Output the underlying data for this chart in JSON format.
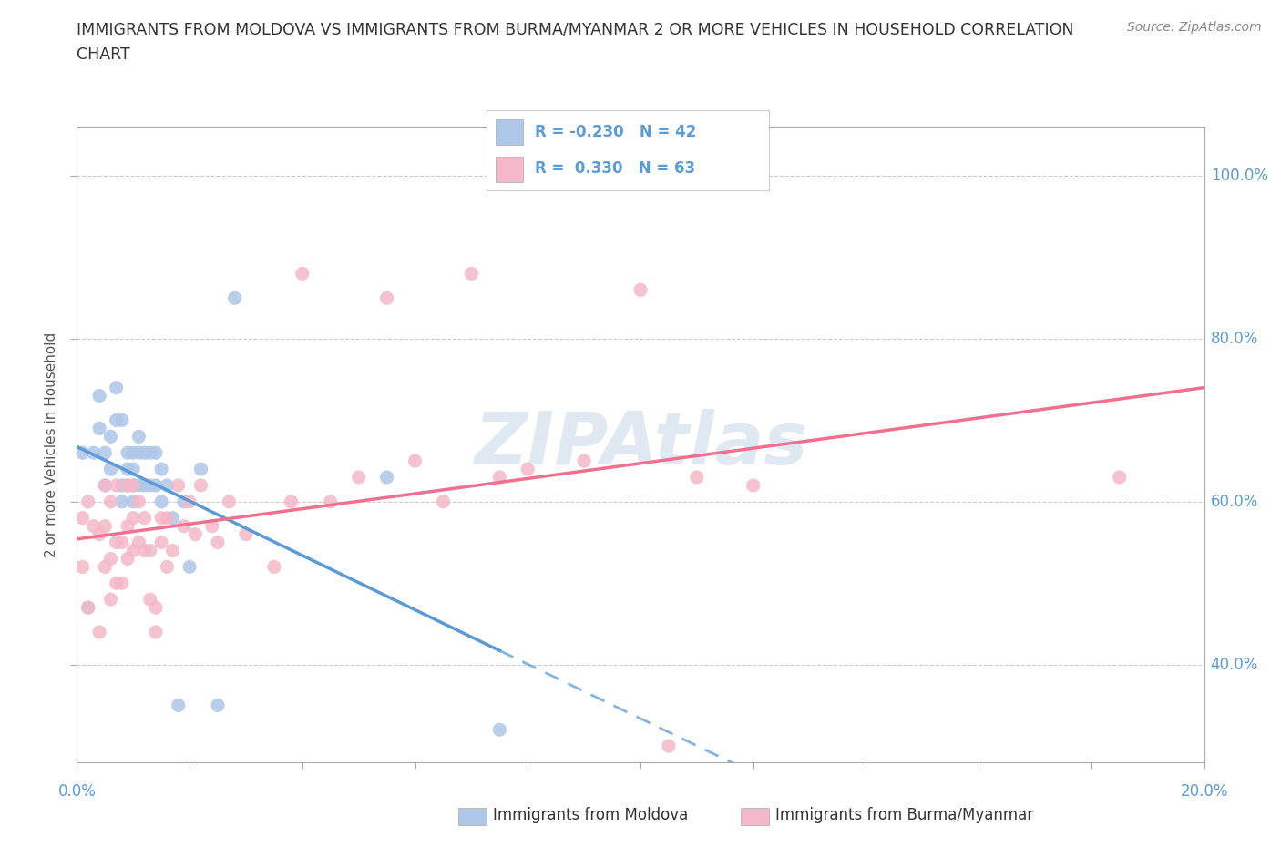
{
  "title_line1": "IMMIGRANTS FROM MOLDOVA VS IMMIGRANTS FROM BURMA/MYANMAR 2 OR MORE VEHICLES IN HOUSEHOLD CORRELATION",
  "title_line2": "CHART",
  "source": "Source: ZipAtlas.com",
  "ylabel": "2 or more Vehicles in Household",
  "moldova_color": "#aec6e8",
  "burma_color": "#f4b8c8",
  "moldova_line_color": "#5b9bd5",
  "burma_line_color": "#f07090",
  "watermark_color": "#c8d8e8",
  "R_moldova": -0.23,
  "N_moldova": 42,
  "R_burma": 0.33,
  "N_burma": 63,
  "moldova_scatter_x": [
    0.001,
    0.002,
    0.003,
    0.004,
    0.004,
    0.005,
    0.005,
    0.006,
    0.006,
    0.007,
    0.007,
    0.008,
    0.008,
    0.008,
    0.009,
    0.009,
    0.009,
    0.01,
    0.01,
    0.01,
    0.01,
    0.011,
    0.011,
    0.011,
    0.012,
    0.012,
    0.013,
    0.013,
    0.014,
    0.014,
    0.015,
    0.015,
    0.016,
    0.017,
    0.018,
    0.019,
    0.02,
    0.022,
    0.025,
    0.028,
    0.055,
    0.075
  ],
  "moldova_scatter_y": [
    0.66,
    0.47,
    0.66,
    0.69,
    0.73,
    0.62,
    0.66,
    0.64,
    0.68,
    0.7,
    0.74,
    0.6,
    0.62,
    0.7,
    0.62,
    0.64,
    0.66,
    0.6,
    0.62,
    0.64,
    0.66,
    0.62,
    0.66,
    0.68,
    0.62,
    0.66,
    0.62,
    0.66,
    0.62,
    0.66,
    0.6,
    0.64,
    0.62,
    0.58,
    0.35,
    0.6,
    0.52,
    0.64,
    0.35,
    0.85,
    0.63,
    0.32
  ],
  "burma_scatter_x": [
    0.001,
    0.001,
    0.002,
    0.002,
    0.003,
    0.004,
    0.004,
    0.005,
    0.005,
    0.005,
    0.006,
    0.006,
    0.006,
    0.007,
    0.007,
    0.007,
    0.008,
    0.008,
    0.009,
    0.009,
    0.009,
    0.01,
    0.01,
    0.01,
    0.011,
    0.011,
    0.012,
    0.012,
    0.013,
    0.013,
    0.014,
    0.014,
    0.015,
    0.015,
    0.016,
    0.016,
    0.017,
    0.018,
    0.019,
    0.02,
    0.021,
    0.022,
    0.024,
    0.025,
    0.027,
    0.03,
    0.035,
    0.038,
    0.04,
    0.045,
    0.05,
    0.055,
    0.06,
    0.065,
    0.07,
    0.075,
    0.08,
    0.09,
    0.1,
    0.105,
    0.11,
    0.12,
    0.185
  ],
  "burma_scatter_y": [
    0.52,
    0.58,
    0.47,
    0.6,
    0.57,
    0.44,
    0.56,
    0.52,
    0.57,
    0.62,
    0.48,
    0.53,
    0.6,
    0.5,
    0.55,
    0.62,
    0.5,
    0.55,
    0.53,
    0.57,
    0.62,
    0.54,
    0.58,
    0.62,
    0.55,
    0.6,
    0.54,
    0.58,
    0.48,
    0.54,
    0.44,
    0.47,
    0.55,
    0.58,
    0.52,
    0.58,
    0.54,
    0.62,
    0.57,
    0.6,
    0.56,
    0.62,
    0.57,
    0.55,
    0.6,
    0.56,
    0.52,
    0.6,
    0.88,
    0.6,
    0.63,
    0.85,
    0.65,
    0.6,
    0.88,
    0.63,
    0.64,
    0.65,
    0.86,
    0.3,
    0.63,
    0.62,
    0.63
  ],
  "xmin": 0.0,
  "xmax": 0.2,
  "ymin": 0.28,
  "ymax": 1.06,
  "yticks": [
    0.4,
    0.6,
    0.8,
    1.0
  ],
  "ytick_labels": [
    "40.0%",
    "60.0%",
    "80.0%",
    "100.0%"
  ],
  "xticks": [
    0.0,
    0.02,
    0.04,
    0.06,
    0.08,
    0.1,
    0.12,
    0.14,
    0.16,
    0.18,
    0.2
  ],
  "xtick_labels_show": [
    "0.0%",
    "",
    "",
    "",
    "",
    "",
    "",
    "",
    "",
    "",
    "20.0%"
  ],
  "background_color": "#ffffff",
  "grid_color": "#cccccc",
  "tick_label_color": "#5b9bd5",
  "title_color": "#333333",
  "source_color": "#888888"
}
